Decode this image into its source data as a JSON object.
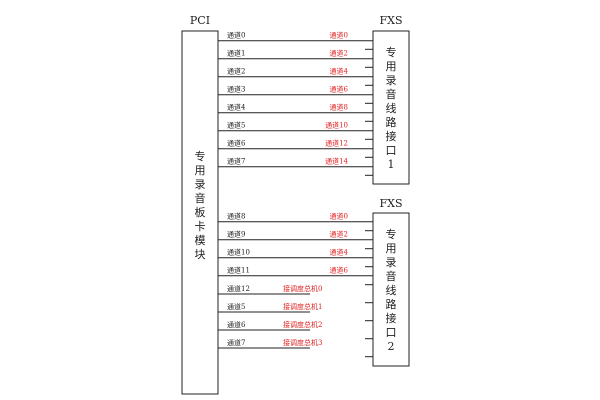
{
  "pci": {
    "title": "PCI",
    "box_text": [
      "专",
      "用",
      "录",
      "音",
      "板",
      "卡",
      "模",
      "块"
    ]
  },
  "fxs1": {
    "title": "FXS",
    "box_text": [
      "专",
      "用",
      "录",
      "音",
      "线",
      "路",
      "接",
      "口",
      "1"
    ],
    "connections": [
      {
        "left": "通道0",
        "right": "通道0"
      },
      {
        "left": "通道1",
        "right": "通道2"
      },
      {
        "left": "通道2",
        "right": "通道4"
      },
      {
        "left": "通道3",
        "right": "通道6"
      },
      {
        "left": "通道4",
        "right": "通道8"
      },
      {
        "left": "通道5",
        "right": "通道10"
      },
      {
        "left": "通道6",
        "right": "通道12"
      },
      {
        "left": "通道7",
        "right": "通道14"
      }
    ]
  },
  "fxs2": {
    "title": "FXS",
    "box_text": [
      "专",
      "用",
      "录",
      "音",
      "线",
      "路",
      "接",
      "口",
      "2"
    ],
    "connections": [
      {
        "left": "通道8",
        "right": "通道0"
      },
      {
        "left": "通道9",
        "right": "通道2"
      },
      {
        "left": "通道10",
        "right": "通道4"
      },
      {
        "left": "通道11",
        "right": "通道6"
      }
    ],
    "dispatch": [
      {
        "left": "通道12",
        "right": "接调度总机0"
      },
      {
        "left": "通道5",
        "right": "接调度总机1"
      },
      {
        "left": "通道6",
        "right": "接调度总机2"
      },
      {
        "left": "通道7",
        "right": "接调度总机3"
      }
    ]
  },
  "colors": {
    "line": "#222222",
    "red_label": "#e02020"
  }
}
